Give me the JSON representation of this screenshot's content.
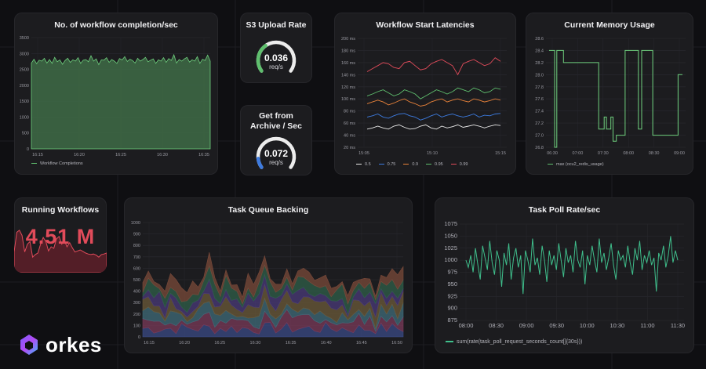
{
  "colors": {
    "green": "#5fbf6e",
    "blue": "#3d7be0",
    "red": "#e14b5a",
    "orange": "#e8823a",
    "teal": "#3fbf8c"
  },
  "workflow_completion": {
    "title": "No. of workflow completion/sec",
    "y_ticks": [
      "3500",
      "3000",
      "2500",
      "2000",
      "1500",
      "1000",
      "500",
      "0"
    ],
    "x_ticks": [
      "16:15",
      "16:20",
      "16:25",
      "16:30",
      "16:35"
    ],
    "legend": "Workflow Completions",
    "values": [
      2700,
      2820,
      2680,
      2790,
      2760,
      2850,
      2700,
      2810,
      2690,
      2880,
      2740,
      2800,
      2660,
      2780,
      2850,
      2720,
      2800,
      2760,
      2870,
      2690,
      2790,
      2810,
      2740,
      2930,
      2760,
      2830,
      2650,
      2800,
      2790,
      2870,
      2720,
      2810,
      2760,
      2690,
      2840,
      2800,
      2900,
      2750,
      2820,
      2780,
      2700,
      2850,
      2760,
      2810,
      2880,
      2740,
      2790,
      2830,
      2690,
      2800,
      2760,
      2870,
      2720,
      2840,
      2780,
      2960,
      2700,
      2810,
      2760,
      2830,
      2880,
      2730,
      2800,
      2760,
      2900,
      2690,
      2820,
      2780,
      2950,
      2760
    ]
  },
  "s3_upload": {
    "title": "S3 Upload Rate",
    "value": "0.036",
    "unit": "req/s",
    "fraction": 0.36
  },
  "archive": {
    "title_line1": "Get from",
    "title_line2": "Archive / Sec",
    "value": "0.072",
    "unit": "req/s",
    "fraction": 0.12
  },
  "latencies": {
    "title": "Workflow Start Latencies",
    "y_ticks": [
      "200 ms",
      "180 ms",
      "160 ms",
      "140 ms",
      "120 ms",
      "100 ms",
      "80 ms",
      "60 ms",
      "40 ms",
      "20 ms"
    ],
    "x_ticks": [
      "15:05",
      "15:10",
      "15:15"
    ],
    "legend": [
      "0.5",
      "0.75",
      "0.9",
      "0.95",
      "0.99"
    ],
    "series": [
      {
        "name": "0.5",
        "color": "#e8e8e8",
        "values": [
          50,
          52,
          55,
          52,
          50,
          55,
          57,
          53,
          50,
          51,
          55,
          57,
          52,
          50,
          55,
          52,
          54,
          57,
          53,
          55,
          57,
          55,
          52,
          55,
          57,
          56
        ]
      },
      {
        "name": "0.75",
        "color": "#3d7be0",
        "values": [
          70,
          72,
          75,
          70,
          68,
          72,
          75,
          76,
          72,
          70,
          65,
          68,
          72,
          75,
          70,
          73,
          75,
          72,
          70,
          72,
          75,
          70,
          73,
          72,
          75,
          76
        ]
      },
      {
        "name": "0.9",
        "color": "#e8823a",
        "values": [
          92,
          95,
          98,
          95,
          90,
          93,
          97,
          100,
          95,
          92,
          88,
          90,
          95,
          98,
          100,
          95,
          98,
          100,
          97,
          95,
          100,
          98,
          95,
          97,
          100,
          98
        ]
      },
      {
        "name": "0.95",
        "color": "#5fbf6e",
        "values": [
          105,
          108,
          112,
          115,
          110,
          105,
          108,
          115,
          112,
          108,
          100,
          105,
          110,
          115,
          112,
          108,
          112,
          118,
          115,
          112,
          118,
          115,
          110,
          112,
          118,
          116
        ]
      },
      {
        "name": "0.99",
        "color": "#e14b5a",
        "values": [
          145,
          150,
          155,
          160,
          158,
          152,
          150,
          160,
          162,
          155,
          148,
          150,
          158,
          162,
          165,
          160,
          155,
          140,
          158,
          162,
          165,
          160,
          155,
          158,
          168,
          162
        ]
      }
    ]
  },
  "memory": {
    "title": "Current Memory Usage",
    "y_ticks": [
      "28.6",
      "28.4",
      "28.2",
      "28.0",
      "27.8",
      "27.6",
      "27.4",
      "27.2",
      "27.0",
      "26.8"
    ],
    "x_ticks": [
      "06:30",
      "07:00",
      "07:30",
      "08:00",
      "08:30",
      "09:00"
    ],
    "legend": "max (ocu2_redis_usage)",
    "points": [
      [
        0,
        28.4
      ],
      [
        5,
        28.4
      ],
      [
        5,
        26.8
      ],
      [
        7,
        26.8
      ],
      [
        7,
        28.4
      ],
      [
        13,
        28.4
      ],
      [
        13,
        28.2
      ],
      [
        45,
        28.2
      ],
      [
        45,
        27.1
      ],
      [
        50,
        27.1
      ],
      [
        50,
        27.3
      ],
      [
        52,
        27.3
      ],
      [
        52,
        27.1
      ],
      [
        56,
        27.1
      ],
      [
        56,
        27.3
      ],
      [
        58,
        27.3
      ],
      [
        58,
        26.9
      ],
      [
        61,
        26.9
      ],
      [
        61,
        27.0
      ],
      [
        69,
        27.0
      ],
      [
        69,
        28.4
      ],
      [
        81,
        28.4
      ],
      [
        81,
        27.1
      ],
      [
        84,
        27.1
      ],
      [
        84,
        28.4
      ],
      [
        94,
        28.4
      ],
      [
        94,
        27.0
      ],
      [
        117,
        27.0
      ],
      [
        117,
        28.0
      ],
      [
        121,
        28.0
      ]
    ],
    "x_max": 121
  },
  "running": {
    "title": "Running Workflows",
    "value": "4.51 M",
    "spark": [
      40,
      78,
      82,
      72,
      40,
      55,
      60,
      30,
      35,
      38,
      55,
      68,
      60,
      42,
      50,
      47,
      65,
      70,
      55,
      62,
      50,
      58,
      48,
      40,
      42,
      44,
      41,
      38,
      36,
      35,
      36,
      34,
      30,
      35,
      36,
      38
    ]
  },
  "task_queue": {
    "title": "Task Queue Backing",
    "y_ticks": [
      "1000",
      "900",
      "800",
      "700",
      "600",
      "500",
      "400",
      "300",
      "200",
      "100",
      "0"
    ],
    "x_ticks": [
      "16:15",
      "16:20",
      "16:25",
      "16:30",
      "16:35",
      "16:40",
      "16:45",
      "16:50"
    ]
  },
  "poll_rate": {
    "title": "Task Poll Rate/sec",
    "y_ticks": [
      "1075",
      "1050",
      "1025",
      "1000",
      "975",
      "950",
      "925",
      "900",
      "875"
    ],
    "x_ticks": [
      "08:00",
      "08:30",
      "09:00",
      "09:30",
      "10:00",
      "10:30",
      "11:00",
      "11:30"
    ],
    "legend": "sum(rate(task_poll_request_seconds_count[]{30s}))",
    "values": [
      1000,
      985,
      1010,
      975,
      1025,
      990,
      960,
      1030,
      1005,
      980,
      1040,
      995,
      970,
      1020,
      1000,
      945,
      1015,
      990,
      1035,
      960,
      1005,
      1025,
      985,
      1010,
      930,
      1020,
      1000,
      975,
      1045,
      990,
      1005,
      970,
      1030,
      1000,
      955,
      1020,
      990,
      1010,
      980,
      1035,
      1000,
      965,
      1025,
      995,
      1010,
      975,
      1040,
      1000,
      985,
      1020,
      950,
      1010,
      990,
      1030,
      1000,
      975,
      1045,
      995,
      1015,
      980,
      1005,
      1035,
      990,
      960,
      1020,
      1000,
      1010,
      985,
      1030,
      995,
      970,
      1025,
      1000,
      1040,
      980,
      1010,
      995,
      1020,
      990,
      1005,
      935,
      1015,
      1000,
      1030,
      985,
      1010,
      1050,
      995,
      1020,
      1000
    ]
  },
  "brand": {
    "name": "orkes"
  }
}
